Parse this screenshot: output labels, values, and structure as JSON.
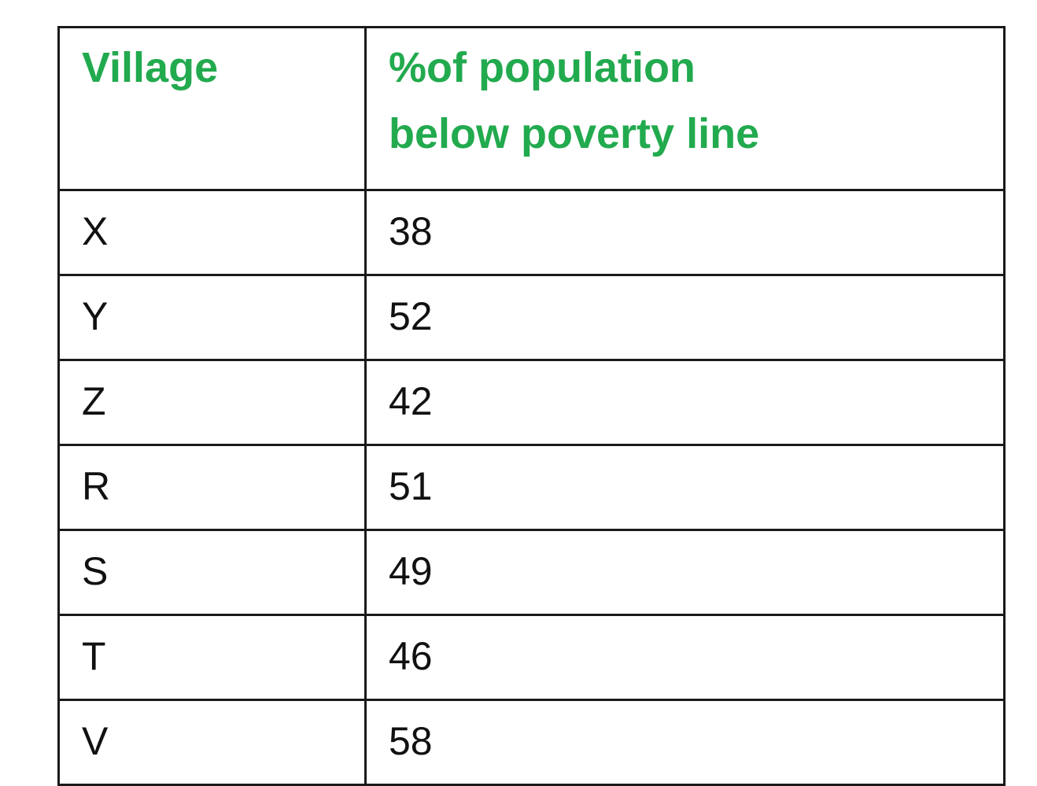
{
  "colors": {
    "header_text": "#22aa4e",
    "body_text": "#111111",
    "border": "#1a1a1a",
    "background": "#ffffff"
  },
  "chart_data": {
    "type": "table",
    "columns": [
      "Village",
      "%of population below poverty line"
    ],
    "header_lines": [
      "%of population",
      "below poverty line"
    ],
    "categories": [
      "X",
      "Y",
      "Z",
      "R",
      "S",
      "T",
      "V"
    ],
    "values": [
      38,
      52,
      42,
      51,
      49,
      46,
      58
    ],
    "rows": [
      {
        "village": "X",
        "percent": "38"
      },
      {
        "village": "Y",
        "percent": "52"
      },
      {
        "village": "Z",
        "percent": "42"
      },
      {
        "village": "R",
        "percent": "51"
      },
      {
        "village": "S",
        "percent": "49"
      },
      {
        "village": "T",
        "percent": "46"
      },
      {
        "village": "V",
        "percent": "58"
      }
    ]
  }
}
